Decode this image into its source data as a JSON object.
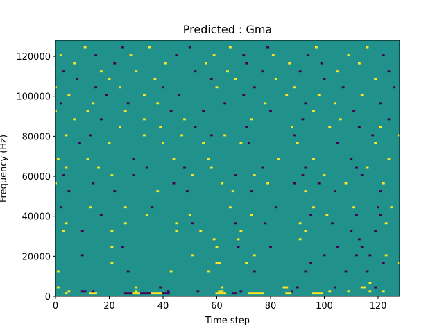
{
  "chart_data": {
    "type": "heatmap",
    "title": "Predicted : Gma",
    "xlabel": "Time step",
    "ylabel": "Frequency (Hz)",
    "xlim": [
      0,
      128
    ],
    "ylim": [
      0,
      128000
    ],
    "x_ticks": [
      "0",
      "20",
      "40",
      "60",
      "80",
      "100",
      "120"
    ],
    "y_ticks": [
      "0",
      "20000",
      "40000",
      "60000",
      "80000",
      "100000",
      "120000"
    ],
    "grid": false,
    "legend": "none",
    "colormap": "viridis",
    "colors": {
      "background": "#21918c",
      "low": "#440154",
      "high": "#fde725"
    },
    "levels": [
      -1,
      0,
      1
    ],
    "background_level": 0,
    "cells": [
      [
        1,
        3,
        3,
        1
      ],
      [
        1,
        4,
        5,
        1
      ],
      [
        -1,
        10,
        12,
        2
      ],
      [
        1,
        13,
        16,
        1
      ],
      [
        -1,
        26,
        29,
        1
      ],
      [
        1,
        29,
        32,
        1
      ],
      [
        -1,
        32,
        36,
        1
      ],
      [
        1,
        36,
        40,
        1
      ],
      [
        -1,
        40,
        43,
        1
      ],
      [
        1,
        60,
        64,
        1
      ],
      [
        -1,
        66,
        68,
        1
      ],
      [
        1,
        72,
        78,
        1
      ],
      [
        1,
        86,
        88,
        1
      ],
      [
        1,
        96,
        100,
        1
      ],
      [
        1,
        5,
        6,
        2
      ],
      [
        -1,
        14,
        15,
        2
      ],
      [
        1,
        30,
        31,
        2
      ],
      [
        -1,
        42,
        43,
        2
      ],
      [
        -1,
        53,
        54,
        2
      ],
      [
        1,
        61,
        63,
        2
      ],
      [
        -1,
        69,
        70,
        2
      ],
      [
        -1,
        88,
        89,
        2
      ],
      [
        1,
        102,
        103,
        2
      ],
      [
        1,
        109,
        110,
        2
      ],
      [
        1,
        117,
        118,
        2
      ],
      [
        1,
        122,
        123,
        2
      ],
      [
        1,
        1,
        2,
        4
      ],
      [
        1,
        30,
        31,
        4
      ],
      [
        -1,
        39,
        40,
        4
      ],
      [
        1,
        62,
        63,
        4
      ],
      [
        1,
        85,
        87,
        4
      ],
      [
        -1,
        90,
        91,
        4
      ],
      [
        -1,
        104,
        105,
        4
      ],
      [
        1,
        114,
        116,
        4
      ],
      [
        -1,
        119,
        120,
        4
      ],
      [
        1,
        117,
        118,
        6
      ],
      [
        1,
        1,
        2,
        12
      ],
      [
        -1,
        27,
        28,
        12
      ],
      [
        1,
        43,
        44,
        12
      ],
      [
        1,
        57,
        58,
        12
      ],
      [
        -1,
        74,
        75,
        12
      ],
      [
        -1,
        93,
        94,
        12
      ],
      [
        -1,
        108,
        109,
        12
      ],
      [
        -1,
        116,
        117,
        12
      ],
      [
        1,
        21,
        22,
        16
      ],
      [
        1,
        60,
        62,
        16
      ],
      [
        1,
        71,
        72,
        16
      ],
      [
        -1,
        95,
        96,
        16
      ],
      [
        -1,
        122,
        123,
        16
      ],
      [
        1,
        128,
        129,
        16
      ],
      [
        -1,
        10,
        11,
        20
      ],
      [
        1,
        51,
        52,
        20
      ],
      [
        1,
        74,
        75,
        20
      ],
      [
        -1,
        100,
        101,
        20
      ],
      [
        -1,
        112,
        113,
        20
      ],
      [
        -1,
        117,
        118,
        20
      ],
      [
        1,
        123,
        124,
        20
      ],
      [
        1,
        21,
        22,
        24
      ],
      [
        -1,
        25,
        26,
        24
      ],
      [
        1,
        60,
        61,
        24
      ],
      [
        -1,
        68,
        69,
        24
      ],
      [
        -1,
        80,
        81,
        24
      ],
      [
        -1,
        105,
        106,
        24
      ],
      [
        -1,
        114,
        115,
        24
      ],
      [
        1,
        129,
        130,
        24
      ],
      [
        1,
        59,
        60,
        28
      ],
      [
        1,
        68,
        69,
        28
      ],
      [
        1,
        91,
        92,
        28
      ],
      [
        -1,
        113,
        114,
        28
      ],
      [
        1,
        3,
        4,
        32
      ],
      [
        -1,
        10,
        11,
        32
      ],
      [
        1,
        21,
        22,
        32
      ],
      [
        1,
        45,
        46,
        32
      ],
      [
        1,
        54,
        55,
        32
      ],
      [
        1,
        69,
        70,
        32
      ],
      [
        1,
        93,
        94,
        32
      ],
      [
        -1,
        110,
        111,
        32
      ],
      [
        -1,
        119,
        120,
        32
      ],
      [
        -1,
        129,
        130,
        32
      ],
      [
        1,
        4,
        5,
        36
      ],
      [
        1,
        26,
        27,
        36
      ],
      [
        1,
        45,
        46,
        36
      ],
      [
        -1,
        51,
        52,
        36
      ],
      [
        -1,
        67,
        68,
        36
      ],
      [
        -1,
        78,
        79,
        36
      ],
      [
        1,
        91,
        92,
        36
      ],
      [
        -1,
        103,
        104,
        36
      ],
      [
        1,
        123,
        124,
        36
      ],
      [
        -1,
        17,
        18,
        40
      ],
      [
        1,
        34,
        35,
        40
      ],
      [
        1,
        50,
        51,
        40
      ],
      [
        1,
        73,
        74,
        40
      ],
      [
        -1,
        95,
        96,
        40
      ],
      [
        1,
        101,
        102,
        40
      ],
      [
        -1,
        112,
        113,
        40
      ],
      [
        -1,
        121,
        122,
        40
      ],
      [
        -1,
        2,
        3,
        44
      ],
      [
        1,
        13,
        14,
        44
      ],
      [
        1,
        26,
        27,
        44
      ],
      [
        -1,
        36,
        37,
        44
      ],
      [
        1,
        65,
        66,
        44
      ],
      [
        -1,
        82,
        83,
        44
      ],
      [
        1,
        96,
        97,
        44
      ],
      [
        1,
        111,
        112,
        44
      ],
      [
        -1,
        120,
        121,
        44
      ],
      [
        1,
        125,
        126,
        44
      ],
      [
        -1,
        5,
        6,
        52
      ],
      [
        -1,
        22,
        23,
        52
      ],
      [
        1,
        38,
        39,
        52
      ],
      [
        -1,
        49,
        50,
        52
      ],
      [
        1,
        66,
        67,
        52
      ],
      [
        -1,
        73,
        74,
        52
      ],
      [
        1,
        93,
        94,
        52
      ],
      [
        -1,
        104,
        105,
        52
      ],
      [
        -1,
        121,
        122,
        52
      ],
      [
        1,
        -1,
        1,
        56
      ],
      [
        -1,
        14,
        15,
        56
      ],
      [
        -1,
        44,
        45,
        56
      ],
      [
        1,
        62,
        63,
        56
      ],
      [
        1,
        79,
        80,
        56
      ],
      [
        -1,
        89,
        90,
        56
      ],
      [
        -1,
        98,
        99,
        56
      ],
      [
        1,
        108,
        109,
        56
      ],
      [
        1,
        122,
        123,
        56
      ],
      [
        -1,
        3,
        4,
        60
      ],
      [
        1,
        21,
        22,
        60
      ],
      [
        -1,
        29,
        30,
        60
      ],
      [
        1,
        51,
        52,
        60
      ],
      [
        -1,
        67,
        68,
        60
      ],
      [
        1,
        74,
        75,
        60
      ],
      [
        -1,
        92,
        93,
        60
      ],
      [
        1,
        100,
        101,
        60
      ],
      [
        -1,
        114,
        115,
        60
      ],
      [
        1,
        129,
        130,
        60
      ],
      [
        1,
        4,
        5,
        64
      ],
      [
        1,
        16,
        17,
        64
      ],
      [
        -1,
        34,
        35,
        64
      ],
      [
        -1,
        48,
        49,
        64
      ],
      [
        1,
        58,
        59,
        64
      ],
      [
        -1,
        77,
        78,
        64
      ],
      [
        -1,
        93,
        94,
        64
      ],
      [
        -1,
        112,
        113,
        64
      ],
      [
        1,
        116,
        117,
        64
      ],
      [
        1,
        1,
        2,
        68
      ],
      [
        1,
        12,
        13,
        68
      ],
      [
        -1,
        29,
        30,
        68
      ],
      [
        1,
        44,
        45,
        68
      ],
      [
        1,
        57,
        58,
        68
      ],
      [
        1,
        83,
        84,
        68
      ],
      [
        1,
        96,
        97,
        68
      ],
      [
        -1,
        110,
        111,
        68
      ],
      [
        1,
        124,
        125,
        68
      ],
      [
        -1,
        9,
        10,
        76
      ],
      [
        1,
        20,
        21,
        76
      ],
      [
        1,
        40,
        41,
        76
      ],
      [
        1,
        55,
        56,
        76
      ],
      [
        1,
        69,
        70,
        76
      ],
      [
        -1,
        72,
        73,
        76
      ],
      [
        1,
        90,
        91,
        76
      ],
      [
        -1,
        105,
        106,
        76
      ],
      [
        1,
        119,
        120,
        76
      ],
      [
        1,
        4,
        5,
        80
      ],
      [
        -1,
        13,
        14,
        80
      ],
      [
        1,
        33,
        34,
        80
      ],
      [
        1,
        47,
        48,
        80
      ],
      [
        -1,
        58,
        59,
        80
      ],
      [
        1,
        63,
        64,
        80
      ],
      [
        -1,
        89,
        90,
        80
      ],
      [
        -1,
        118,
        119,
        80
      ],
      [
        1,
        128,
        129,
        80
      ],
      [
        1,
        24,
        25,
        84
      ],
      [
        1,
        39,
        40,
        84
      ],
      [
        -1,
        52,
        53,
        84
      ],
      [
        -1,
        71,
        72,
        84
      ],
      [
        1,
        88,
        89,
        84
      ],
      [
        1,
        102,
        103,
        84
      ],
      [
        -1,
        113,
        114,
        84
      ],
      [
        1,
        121,
        122,
        84
      ],
      [
        1,
        7,
        8,
        88
      ],
      [
        -1,
        17,
        18,
        88
      ],
      [
        1,
        33,
        34,
        88
      ],
      [
        1,
        48,
        49,
        88
      ],
      [
        1,
        73,
        74,
        88
      ],
      [
        -1,
        92,
        93,
        88
      ],
      [
        1,
        106,
        107,
        88
      ],
      [
        -1,
        124,
        125,
        88
      ],
      [
        1,
        -1,
        1,
        92
      ],
      [
        1,
        12,
        13,
        92
      ],
      [
        1,
        26,
        27,
        92
      ],
      [
        -1,
        43,
        44,
        92
      ],
      [
        -1,
        55,
        56,
        92
      ],
      [
        -1,
        80,
        81,
        92
      ],
      [
        1,
        96,
        97,
        92
      ],
      [
        -1,
        111,
        112,
        92
      ],
      [
        1,
        129,
        130,
        92
      ],
      [
        -1,
        2,
        3,
        96
      ],
      [
        1,
        14,
        15,
        96
      ],
      [
        -1,
        27,
        28,
        96
      ],
      [
        1,
        38,
        39,
        96
      ],
      [
        -1,
        63,
        64,
        96
      ],
      [
        1,
        78,
        79,
        96
      ],
      [
        -1,
        93,
        94,
        96
      ],
      [
        1,
        104,
        105,
        96
      ],
      [
        -1,
        121,
        122,
        96
      ],
      [
        1,
        5,
        6,
        100
      ],
      [
        -1,
        19,
        20,
        100
      ],
      [
        1,
        33,
        34,
        100
      ],
      [
        -1,
        46,
        47,
        100
      ],
      [
        -1,
        70,
        71,
        100
      ],
      [
        1,
        86,
        87,
        100
      ],
      [
        1,
        98,
        99,
        100
      ],
      [
        1,
        114,
        115,
        100
      ],
      [
        1,
        -1,
        1,
        104
      ],
      [
        -1,
        15,
        16,
        104
      ],
      [
        1,
        24,
        25,
        104
      ],
      [
        -1,
        40,
        41,
        104
      ],
      [
        1,
        60,
        61,
        104
      ],
      [
        -1,
        74,
        75,
        104
      ],
      [
        1,
        89,
        90,
        104
      ],
      [
        -1,
        107,
        108,
        104
      ],
      [
        -1,
        126,
        127,
        104
      ],
      [
        -1,
        8,
        9,
        108
      ],
      [
        1,
        20,
        21,
        108
      ],
      [
        1,
        37,
        38,
        108
      ],
      [
        -1,
        58,
        59,
        108
      ],
      [
        1,
        67,
        68,
        108
      ],
      [
        1,
        82,
        83,
        108
      ],
      [
        -1,
        100,
        101,
        108
      ],
      [
        1,
        119,
        120,
        108
      ],
      [
        -1,
        3,
        4,
        112
      ],
      [
        1,
        17,
        18,
        112
      ],
      [
        1,
        30,
        31,
        112
      ],
      [
        -1,
        52,
        53,
        112
      ],
      [
        1,
        64,
        65,
        112
      ],
      [
        -1,
        77,
        78,
        112
      ],
      [
        -1,
        91,
        92,
        112
      ],
      [
        1,
        105,
        106,
        112
      ],
      [
        -1,
        124,
        125,
        112
      ],
      [
        1,
        7,
        8,
        116
      ],
      [
        -1,
        22,
        23,
        116
      ],
      [
        1,
        41,
        42,
        116
      ],
      [
        1,
        56,
        57,
        116
      ],
      [
        -1,
        71,
        72,
        116
      ],
      [
        1,
        87,
        88,
        116
      ],
      [
        -1,
        99,
        100,
        116
      ],
      [
        1,
        113,
        114,
        116
      ],
      [
        1,
        2,
        3,
        120
      ],
      [
        -1,
        15,
        16,
        120
      ],
      [
        1,
        28,
        29,
        120
      ],
      [
        -1,
        45,
        46,
        120
      ],
      [
        1,
        59,
        60,
        120
      ],
      [
        -1,
        70,
        71,
        120
      ],
      [
        1,
        81,
        82,
        120
      ],
      [
        -1,
        94,
        95,
        120
      ],
      [
        1,
        109,
        110,
        120
      ],
      [
        -1,
        122,
        123,
        120
      ],
      [
        1,
        11,
        12,
        124
      ],
      [
        -1,
        25,
        26,
        124
      ],
      [
        1,
        35,
        36,
        124
      ],
      [
        -1,
        50,
        51,
        124
      ],
      [
        1,
        65,
        66,
        124
      ],
      [
        -1,
        79,
        80,
        124
      ],
      [
        1,
        97,
        98,
        124
      ],
      [
        1,
        116,
        117,
        124
      ]
    ]
  }
}
